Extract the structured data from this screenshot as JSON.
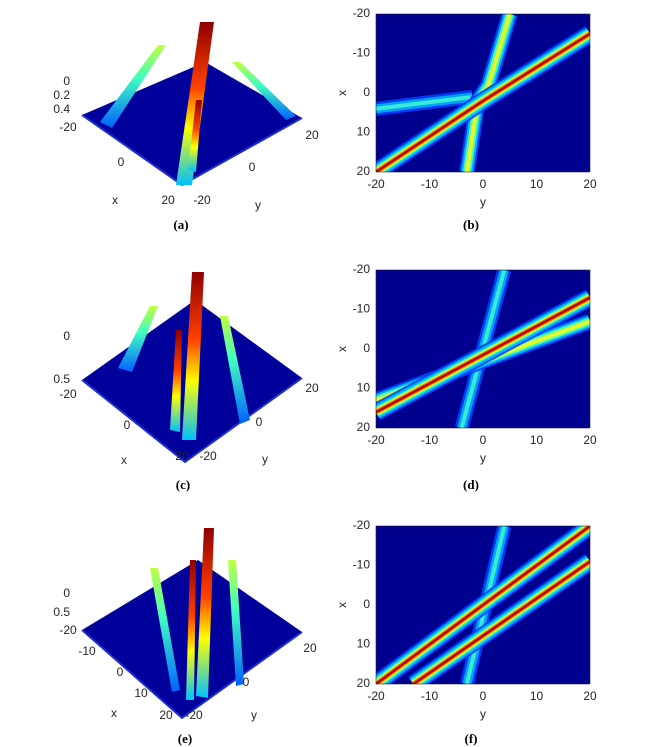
{
  "panels": [
    {
      "caption": "(a)",
      "xlabel": "x",
      "ylabel": "y",
      "zticks": [
        0,
        0.2,
        0.4
      ],
      "xticks": [
        -20,
        0,
        20
      ],
      "yticks": [
        -20,
        0,
        20
      ]
    },
    {
      "caption": "(b)",
      "xlabel": "x",
      "ylabel": "y",
      "xticks": [
        -20,
        -10,
        0,
        10,
        20
      ],
      "yticks": [
        -20,
        -10,
        0,
        10,
        20
      ]
    },
    {
      "caption": "(c)",
      "xlabel": "x",
      "ylabel": "y",
      "zticks": [
        0,
        0.5
      ],
      "xticks": [
        -20,
        0,
        20
      ],
      "yticks": [
        -20,
        0,
        20
      ]
    },
    {
      "caption": "(d)",
      "xlabel": "x",
      "ylabel": "y",
      "xticks": [
        -20,
        -10,
        0,
        10,
        20
      ],
      "yticks": [
        -20,
        -10,
        0,
        10,
        20
      ]
    },
    {
      "caption": "(e)",
      "xlabel": "x",
      "ylabel": "y",
      "zticks": [
        0,
        0.5
      ],
      "xticks": [
        -20,
        -10,
        0,
        10,
        20
      ],
      "yticks": [
        -20,
        0,
        20
      ]
    },
    {
      "caption": "(f)",
      "xlabel": "x",
      "ylabel": "y",
      "xticks": [
        -20,
        -10,
        0,
        10,
        20
      ],
      "yticks": [
        -20,
        -10,
        0,
        10,
        20
      ]
    }
  ]
}
